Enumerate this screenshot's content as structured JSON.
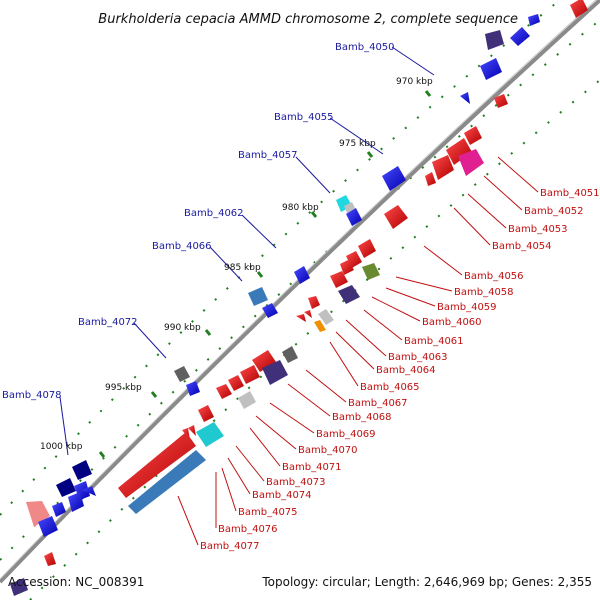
{
  "title": "Burkholderia cepacia AMMD chromosome 2, complete sequence",
  "footer": {
    "accession": "Accession: NC_008391",
    "summary": "Topology: circular; Length: 2,646,969 bp; Genes: 2,355"
  },
  "ticks": [
    "970 kbp",
    "975 kbp",
    "980 kbp",
    "985 kbp",
    "990 kbp",
    "995 kbp",
    "1000 kbp"
  ],
  "outer_labels": [
    "Bamb_4050",
    "Bamb_4055",
    "Bamb_4057",
    "Bamb_4062",
    "Bamb_4066",
    "Bamb_4072",
    "Bamb_4078"
  ],
  "inner_labels": [
    "Bamb_4051",
    "Bamb_4052",
    "Bamb_4053",
    "Bamb_4054",
    "Bamb_4056",
    "Bamb_4058",
    "Bamb_4059",
    "Bamb_4060",
    "Bamb_4061",
    "Bamb_4063",
    "Bamb_4064",
    "Bamb_4065",
    "Bamb_4067",
    "Bamb_4068",
    "Bamb_4069",
    "Bamb_4070",
    "Bamb_4071",
    "Bamb_4073",
    "Bamb_4074",
    "Bamb_4075",
    "Bamb_4076",
    "Bamb_4077"
  ],
  "colors": {
    "forward_gene": "#1010e0",
    "reverse_gene": "#e81010",
    "backbone": "#808080",
    "dots": "#208020"
  }
}
